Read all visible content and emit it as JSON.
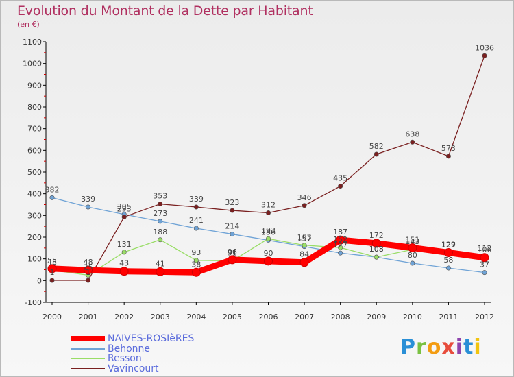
{
  "title": "Evolution du Montant de la Dette par Habitant",
  "subtitle": "(en €)",
  "logo_text": "Proxiti",
  "chart_data": {
    "type": "line",
    "title": "Evolution du Montant de la Dette par Habitant",
    "subtitle": "(en €)",
    "x": [
      "2000",
      "2001",
      "2002",
      "2003",
      "2004",
      "2005",
      "2006",
      "2007",
      "2008",
      "2009",
      "2010",
      "2011",
      "2012"
    ],
    "ylim": [
      -100,
      1100
    ],
    "yticks": [
      -100,
      0,
      100,
      200,
      300,
      400,
      500,
      600,
      700,
      800,
      900,
      1000,
      1100
    ],
    "grid": false,
    "legend_position": "bottom-left",
    "series": [
      {
        "name": "NAIVES-ROSIèRES",
        "color": "#ff0000",
        "values": [
          55,
          48,
          43,
          41,
          38,
          96,
          90,
          84,
          187,
          172,
          151,
          129,
          106
        ],
        "labels": [
          "55",
          "48",
          "43",
          "41",
          "38",
          "96",
          "90",
          "84",
          "187",
          "172",
          "151",
          "129",
          "106"
        ]
      },
      {
        "name": "Behonne",
        "color": "#6fa3d6",
        "values": [
          382,
          339,
          305,
          273,
          241,
          214,
          186,
          157,
          127,
          108,
          80,
          58,
          37
        ],
        "labels": [
          "382",
          "339",
          "305",
          "273",
          "241",
          "214",
          "186",
          "157",
          "127",
          "108",
          "80",
          "58",
          "37"
        ]
      },
      {
        "name": "Resson",
        "color": "#99dd66",
        "values": [
          48,
          25,
          131,
          188,
          93,
          91,
          193,
          163,
          152,
          108,
          143,
          127,
          112
        ],
        "labels": [
          "48",
          "25",
          "131",
          "188",
          "93",
          "91",
          "193",
          "163",
          "152",
          "108",
          "143",
          "127",
          "112"
        ]
      },
      {
        "name": "Vavincourt",
        "color": "#7a2020",
        "values": [
          1,
          1,
          293,
          353,
          339,
          323,
          312,
          346,
          435,
          582,
          638,
          573,
          1036
        ],
        "labels": [
          "1",
          "1",
          "293",
          "353",
          "339",
          "323",
          "312",
          "346",
          "435",
          "582",
          "638",
          "573",
          "1036"
        ]
      }
    ]
  }
}
